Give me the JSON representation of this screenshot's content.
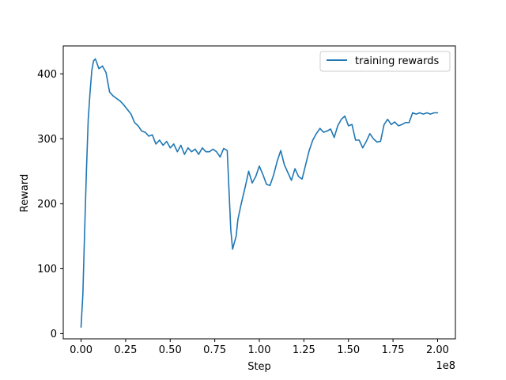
{
  "chart_data": {
    "type": "line",
    "xlabel": "Step",
    "ylabel": "Reward",
    "x_offset_label": "1e8",
    "xlim": [
      -0.1,
      2.1
    ],
    "ylim": [
      -8,
      443
    ],
    "xticks": [
      0.0,
      0.25,
      0.5,
      0.75,
      1.0,
      1.25,
      1.5,
      1.75,
      2.0
    ],
    "xtick_labels": [
      "0.00",
      "0.25",
      "0.50",
      "0.75",
      "1.00",
      "1.25",
      "1.50",
      "1.75",
      "2.00"
    ],
    "yticks": [
      0,
      100,
      200,
      300,
      400
    ],
    "ytick_labels": [
      "0",
      "100",
      "200",
      "300",
      "400"
    ],
    "grid": false,
    "legend_position": "upper right",
    "colors": {
      "series": "#1f77b4"
    },
    "series": [
      {
        "name": "training rewards",
        "x": [
          0.0,
          0.01,
          0.02,
          0.03,
          0.04,
          0.05,
          0.06,
          0.07,
          0.08,
          0.1,
          0.12,
          0.14,
          0.16,
          0.18,
          0.2,
          0.22,
          0.24,
          0.26,
          0.28,
          0.3,
          0.32,
          0.34,
          0.36,
          0.38,
          0.4,
          0.42,
          0.44,
          0.46,
          0.48,
          0.5,
          0.52,
          0.54,
          0.56,
          0.58,
          0.6,
          0.62,
          0.64,
          0.66,
          0.68,
          0.7,
          0.72,
          0.74,
          0.76,
          0.78,
          0.8,
          0.82,
          0.84,
          0.85,
          0.86,
          0.87,
          0.88,
          0.9,
          0.92,
          0.94,
          0.96,
          0.98,
          1.0,
          1.02,
          1.04,
          1.06,
          1.08,
          1.1,
          1.12,
          1.14,
          1.16,
          1.18,
          1.2,
          1.22,
          1.24,
          1.26,
          1.28,
          1.3,
          1.32,
          1.34,
          1.36,
          1.38,
          1.4,
          1.42,
          1.44,
          1.46,
          1.48,
          1.5,
          1.52,
          1.54,
          1.56,
          1.58,
          1.6,
          1.62,
          1.64,
          1.66,
          1.68,
          1.7,
          1.72,
          1.74,
          1.76,
          1.78,
          1.8,
          1.82,
          1.84,
          1.86,
          1.88,
          1.9,
          1.92,
          1.94,
          1.96,
          1.98,
          2.0
        ],
        "values": [
          10,
          60,
          160,
          250,
          330,
          370,
          405,
          420,
          423,
          408,
          412,
          402,
          372,
          366,
          362,
          358,
          352,
          345,
          338,
          325,
          320,
          312,
          310,
          304,
          306,
          292,
          298,
          290,
          296,
          286,
          292,
          280,
          290,
          276,
          286,
          280,
          284,
          276,
          286,
          280,
          280,
          284,
          280,
          272,
          285,
          282,
          160,
          130,
          140,
          150,
          176,
          202,
          225,
          250,
          232,
          242,
          258,
          245,
          230,
          228,
          244,
          265,
          282,
          260,
          248,
          236,
          254,
          242,
          238,
          260,
          282,
          298,
          308,
          316,
          310,
          312,
          315,
          302,
          320,
          330,
          335,
          320,
          322,
          298,
          298,
          286,
          296,
          308,
          300,
          295,
          296,
          322,
          330,
          322,
          326,
          320,
          322,
          325,
          325,
          340,
          338,
          340,
          338,
          340,
          338,
          340,
          340
        ]
      }
    ]
  }
}
